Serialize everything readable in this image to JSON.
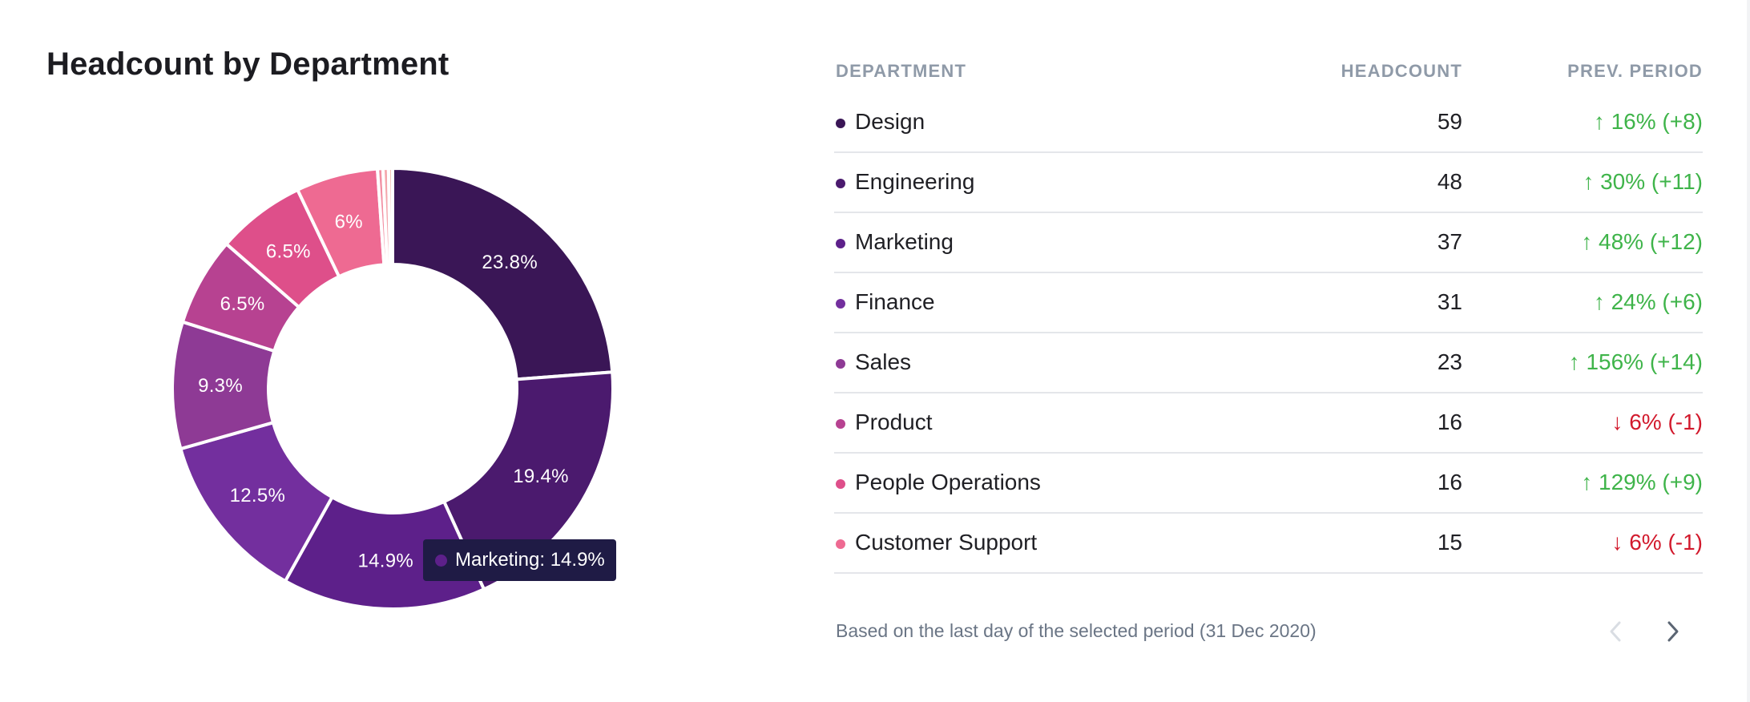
{
  "title": "Headcount by Department",
  "chart_data": {
    "type": "pie",
    "title": "Headcount by Department",
    "labels_unit": "%",
    "slices": [
      {
        "name": "Design",
        "value": 23.8,
        "label": "23.8%",
        "color": "#3a1656"
      },
      {
        "name": "Engineering",
        "value": 19.4,
        "label": "19.4%",
        "color": "#4b1a6e"
      },
      {
        "name": "Marketing",
        "value": 14.9,
        "label": "14.9%",
        "color": "#5d208a"
      },
      {
        "name": "Finance",
        "value": 12.5,
        "label": "12.5%",
        "color": "#732f9e"
      },
      {
        "name": "Sales",
        "value": 9.3,
        "label": "9.3%",
        "color": "#8e3a95"
      },
      {
        "name": "Product",
        "value": 6.5,
        "label": "6.5%",
        "color": "#b74291"
      },
      {
        "name": "People Operations",
        "value": 6.5,
        "label": "6.5%",
        "color": "#de4f8a"
      },
      {
        "name": "Customer Support",
        "value": 6.0,
        "label": "6%",
        "color": "#ee6a92"
      },
      {
        "name": "",
        "value": 0.4,
        "label": "",
        "color": "#f28fa3"
      },
      {
        "name": "",
        "value": 0.4,
        "label": "",
        "color": "#f4a7ad"
      },
      {
        "name": "",
        "value": 0.3,
        "label": "",
        "color": "#f6c2b8"
      }
    ]
  },
  "tooltip": {
    "text": "Marketing: 14.9%",
    "color": "#5d208a"
  },
  "table": {
    "headers": {
      "department": "DEPARTMENT",
      "headcount": "HEADCOUNT",
      "prev": "PREV. PERIOD"
    },
    "rows": [
      {
        "department": "Design",
        "headcount": "59",
        "change": "↑ 16% (+8)",
        "trend": "up",
        "color": "#3a1656"
      },
      {
        "department": "Engineering",
        "headcount": "48",
        "change": "↑ 30% (+11)",
        "trend": "up",
        "color": "#4b1a6e"
      },
      {
        "department": "Marketing",
        "headcount": "37",
        "change": "↑ 48% (+12)",
        "trend": "up",
        "color": "#5d208a"
      },
      {
        "department": "Finance",
        "headcount": "31",
        "change": "↑ 24% (+6)",
        "trend": "up",
        "color": "#732f9e"
      },
      {
        "department": "Sales",
        "headcount": "23",
        "change": "↑ 156% (+14)",
        "trend": "up",
        "color": "#8e3a95"
      },
      {
        "department": "Product",
        "headcount": "16",
        "change": "↓ 6% (-1)",
        "trend": "down",
        "color": "#b74291"
      },
      {
        "department": "People Operations",
        "headcount": "16",
        "change": "↑ 129% (+9)",
        "trend": "up",
        "color": "#de4f8a"
      },
      {
        "department": "Customer Support",
        "headcount": "15",
        "change": "↓ 6% (-1)",
        "trend": "down",
        "color": "#ee6a92"
      }
    ]
  },
  "footer": "Based on the last day of the selected period (31 Dec 2020)",
  "pagination": {
    "prev_enabled": false,
    "next_enabled": true,
    "disabled_color": "#d9dde3",
    "enabled_color": "#5b6573"
  }
}
